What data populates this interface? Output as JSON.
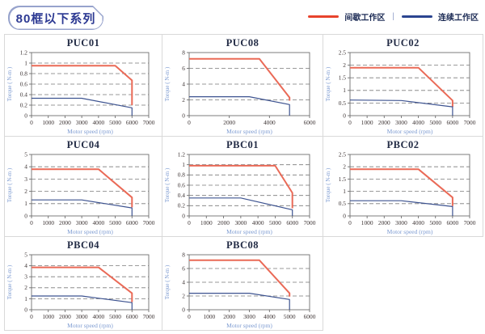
{
  "page": {
    "title": "80框以下系列"
  },
  "legend": {
    "intermittent_label": "间歇工作区",
    "separator": "|",
    "continuous_label": "连续工作区",
    "intermittent_color": "#e8432c",
    "continuous_color": "#2b4590"
  },
  "axes_labels": {
    "x": "Motor speed (rpm)",
    "y": "Torque ( N-m )"
  },
  "colors": {
    "curve_red": "#ea6a57",
    "curve_blue": "#3d5390",
    "plot_border": "#6e6e6e",
    "gridline": "#7a7a7a",
    "tick_text": "#3d3434",
    "axis_label_blue": "#7d9bd1",
    "cell_border": "#d9d9d9",
    "title_text": "#222b45",
    "badge_navy": "#2d3a93"
  },
  "chart_data": [
    {
      "name": "PUC01",
      "type": "line",
      "xlim": [
        0,
        7000
      ],
      "ylim": [
        0,
        1.2
      ],
      "xticks": [
        0,
        1000,
        2000,
        3000,
        4000,
        5000,
        6000,
        7000
      ],
      "ytick_labels": [
        "0",
        "0.2",
        "0.4",
        "0.6",
        "0.8",
        "1",
        "1.2"
      ],
      "series": [
        {
          "name": "间歇工作区",
          "color": "#ea6a57",
          "width": 2,
          "points": [
            [
              0,
              0.95
            ],
            [
              5000,
              0.95
            ],
            [
              6000,
              0.67
            ],
            [
              6000,
              0.2
            ]
          ]
        },
        {
          "name": "连续工作区",
          "color": "#3d5390",
          "width": 1.2,
          "points": [
            [
              0,
              0.33
            ],
            [
              3000,
              0.33
            ],
            [
              6000,
              0.15
            ],
            [
              6000,
              0
            ]
          ]
        }
      ]
    },
    {
      "name": "PUC08",
      "type": "line",
      "xlim": [
        0,
        6000
      ],
      "ylim": [
        0,
        8
      ],
      "xticks": [
        0,
        2000,
        4000,
        6000
      ],
      "ytick_labels": [
        "0",
        "2",
        "4",
        "6",
        "8"
      ],
      "series": [
        {
          "name": "间歇工作区",
          "color": "#ea6a57",
          "width": 2,
          "points": [
            [
              0,
              7.2
            ],
            [
              3500,
              7.2
            ],
            [
              5000,
              2.3
            ],
            [
              5000,
              1.9
            ]
          ]
        },
        {
          "name": "连续工作区",
          "color": "#3d5390",
          "width": 1.2,
          "points": [
            [
              0,
              2.4
            ],
            [
              3000,
              2.4
            ],
            [
              5000,
              1.4
            ],
            [
              5000,
              0
            ]
          ]
        }
      ]
    },
    {
      "name": "PUC02",
      "type": "line",
      "xlim": [
        0,
        7000
      ],
      "ylim": [
        0,
        2.5
      ],
      "xticks": [
        0,
        1000,
        2000,
        3000,
        4000,
        5000,
        6000,
        7000
      ],
      "ytick_labels": [
        "0",
        "0.5",
        "1",
        "1.5",
        "2",
        "2.5"
      ],
      "series": [
        {
          "name": "间歇工作区",
          "color": "#ea6a57",
          "width": 2,
          "points": [
            [
              0,
              1.9
            ],
            [
              4000,
              1.9
            ],
            [
              6000,
              0.6
            ],
            [
              6000,
              0.35
            ]
          ]
        },
        {
          "name": "连续工作区",
          "color": "#3d5390",
          "width": 1.2,
          "points": [
            [
              0,
              0.62
            ],
            [
              3000,
              0.6
            ],
            [
              6000,
              0.35
            ],
            [
              6000,
              0
            ]
          ]
        }
      ]
    },
    {
      "name": "PUC04",
      "type": "line",
      "xlim": [
        0,
        7000
      ],
      "ylim": [
        0,
        5
      ],
      "xticks": [
        0,
        1000,
        2000,
        3000,
        4000,
        5000,
        6000,
        7000
      ],
      "ytick_labels": [
        "0",
        "1",
        "2",
        "3",
        "4",
        "5"
      ],
      "series": [
        {
          "name": "间歇工作区",
          "color": "#ea6a57",
          "width": 2,
          "points": [
            [
              0,
              3.8
            ],
            [
              4000,
              3.8
            ],
            [
              6000,
              1.5
            ],
            [
              6000,
              0.7
            ]
          ]
        },
        {
          "name": "连续工作区",
          "color": "#3d5390",
          "width": 1.2,
          "points": [
            [
              0,
              1.3
            ],
            [
              3000,
              1.3
            ],
            [
              6000,
              0.65
            ],
            [
              6000,
              0
            ]
          ]
        }
      ]
    },
    {
      "name": "PBC01",
      "type": "line",
      "xlim": [
        0,
        7000
      ],
      "ylim": [
        0,
        1.2
      ],
      "xticks": [
        0,
        1000,
        2000,
        3000,
        4000,
        5000,
        6000,
        7000
      ],
      "ytick_labels": [
        "0",
        "0.2",
        "0.4",
        "0.6",
        "0.8",
        "1",
        "1.2"
      ],
      "series": [
        {
          "name": "间歇工作区",
          "color": "#ea6a57",
          "width": 2,
          "points": [
            [
              0,
              0.98
            ],
            [
              5000,
              0.98
            ],
            [
              6000,
              0.45
            ],
            [
              6000,
              0.15
            ]
          ]
        },
        {
          "name": "连续工作区",
          "color": "#3d5390",
          "width": 1.2,
          "points": [
            [
              0,
              0.35
            ],
            [
              3000,
              0.35
            ],
            [
              6000,
              0.12
            ],
            [
              6000,
              0
            ]
          ]
        }
      ]
    },
    {
      "name": "PBC02",
      "type": "line",
      "xlim": [
        0,
        7000
      ],
      "ylim": [
        0,
        2.5
      ],
      "xticks": [
        0,
        1000,
        2000,
        3000,
        4000,
        5000,
        6000,
        7000
      ],
      "ytick_labels": [
        "0",
        "0.5",
        "1",
        "1.5",
        "2",
        "2.5"
      ],
      "series": [
        {
          "name": "间歇工作区",
          "color": "#ea6a57",
          "width": 2,
          "points": [
            [
              0,
              1.9
            ],
            [
              4000,
              1.9
            ],
            [
              6000,
              0.75
            ],
            [
              6000,
              0.4
            ]
          ]
        },
        {
          "name": "连续工作区",
          "color": "#3d5390",
          "width": 1.2,
          "points": [
            [
              0,
              0.62
            ],
            [
              3000,
              0.62
            ],
            [
              6000,
              0.38
            ],
            [
              6000,
              0
            ]
          ]
        }
      ]
    },
    {
      "name": "PBC04",
      "type": "line",
      "xlim": [
        0,
        7000
      ],
      "ylim": [
        0,
        5
      ],
      "xticks": [
        0,
        1000,
        2000,
        3000,
        4000,
        5000,
        6000,
        7000
      ],
      "ytick_labels": [
        "0",
        "1",
        "2",
        "3",
        "4",
        "5"
      ],
      "series": [
        {
          "name": "间歇工作区",
          "color": "#ea6a57",
          "width": 2,
          "points": [
            [
              0,
              3.85
            ],
            [
              4000,
              3.85
            ],
            [
              6000,
              1.5
            ],
            [
              6000,
              0.7
            ]
          ]
        },
        {
          "name": "连续工作区",
          "color": "#3d5390",
          "width": 1.2,
          "points": [
            [
              0,
              1.25
            ],
            [
              3000,
              1.25
            ],
            [
              6000,
              0.65
            ],
            [
              6000,
              0
            ]
          ]
        }
      ]
    },
    {
      "name": "PBC08",
      "type": "line",
      "xlim": [
        0,
        6000
      ],
      "ylim": [
        0,
        8
      ],
      "xticks": [
        0,
        1000,
        2000,
        3000,
        4000,
        5000,
        6000
      ],
      "ytick_labels": [
        "0",
        "2",
        "4",
        "6",
        "8"
      ],
      "series": [
        {
          "name": "间歇工作区",
          "color": "#ea6a57",
          "width": 2,
          "points": [
            [
              0,
              7.2
            ],
            [
              3500,
              7.2
            ],
            [
              5000,
              2.4
            ],
            [
              5000,
              1.9
            ]
          ]
        },
        {
          "name": "连续工作区",
          "color": "#3d5390",
          "width": 1.2,
          "points": [
            [
              0,
              2.4
            ],
            [
              3000,
              2.4
            ],
            [
              5000,
              1.5
            ],
            [
              5000,
              0
            ]
          ]
        }
      ]
    }
  ]
}
